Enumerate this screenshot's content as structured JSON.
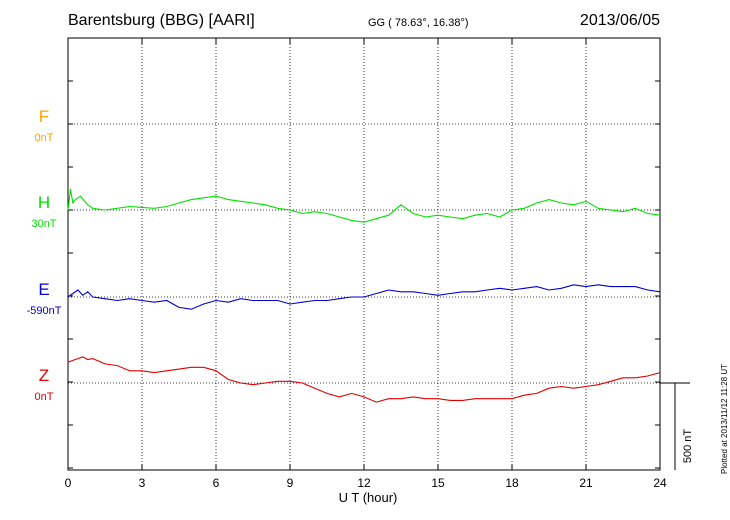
{
  "header": {
    "title": "Barentsburg (BBG)  [AARI]",
    "coords": "GG ( 78.63°,  16.38°)",
    "date": "2013/06/05"
  },
  "footer": {
    "xlabel": "U T (hour)",
    "plotted": "Plotted at 2013/11/12 11:28 UT",
    "scale_label": "500 nT"
  },
  "colors": {
    "F": "#ffa500",
    "H": "#00e000",
    "E": "#0000d0",
    "Z": "#e00000"
  },
  "chart_data": {
    "type": "line",
    "title": "Barentsburg (BBG)  [AARI]",
    "xlabel": "U T (hour)",
    "ylabel": "",
    "xlim": [
      0,
      24
    ],
    "xticks": [
      0,
      3,
      6,
      9,
      12,
      15,
      18,
      21,
      24
    ],
    "grid": true,
    "scale_bar_nT": 500,
    "series": [
      {
        "name": "F",
        "baseline_label": "0nT",
        "color": "#ffa500",
        "x": [],
        "values": []
      },
      {
        "name": "H",
        "baseline_label": "30nT",
        "color": "#00e000",
        "x": [
          0,
          0.1,
          0.2,
          0.3,
          0.5,
          0.8,
          1,
          1.5,
          2,
          2.5,
          3,
          3.5,
          4,
          4.5,
          5,
          5.5,
          6,
          6.5,
          7,
          7.5,
          8,
          8.5,
          9,
          9.5,
          10,
          10.5,
          11,
          11.5,
          12,
          12.5,
          13,
          13.5,
          14,
          14.5,
          15,
          15.5,
          16,
          16.5,
          17,
          17.5,
          18,
          18.5,
          19,
          19.5,
          20,
          20.5,
          21,
          21.5,
          22,
          22.5,
          23,
          23.5,
          24
        ],
        "values": [
          0,
          120,
          40,
          60,
          80,
          30,
          10,
          0,
          10,
          20,
          15,
          10,
          20,
          40,
          60,
          70,
          80,
          60,
          50,
          40,
          30,
          10,
          0,
          -20,
          -10,
          -20,
          -40,
          -60,
          -70,
          -50,
          -30,
          30,
          -20,
          -40,
          -30,
          -40,
          -50,
          -30,
          -20,
          -40,
          0,
          10,
          40,
          60,
          40,
          30,
          50,
          10,
          0,
          -10,
          10,
          -20,
          -30
        ]
      },
      {
        "name": "E",
        "baseline_label": "-590nT",
        "color": "#0000d0",
        "x": [
          0,
          0.2,
          0.4,
          0.6,
          0.8,
          1,
          1.5,
          2,
          2.5,
          3,
          3.5,
          4,
          4.5,
          5,
          5.5,
          6,
          6.5,
          7,
          7.5,
          8,
          8.5,
          9,
          9.5,
          10,
          10.5,
          11,
          11.5,
          12,
          12.5,
          13,
          13.5,
          14,
          14.5,
          15,
          15.5,
          16,
          16.5,
          17,
          17.5,
          18,
          18.5,
          19,
          19.5,
          20,
          20.5,
          21,
          21.5,
          22,
          22.5,
          23,
          23.5,
          24
        ],
        "values": [
          0,
          20,
          40,
          10,
          30,
          0,
          -10,
          -20,
          -10,
          -20,
          -30,
          -20,
          -60,
          -70,
          -40,
          -20,
          -30,
          -10,
          -20,
          -20,
          -20,
          -40,
          -30,
          -20,
          -20,
          -10,
          0,
          0,
          20,
          40,
          30,
          30,
          20,
          10,
          20,
          30,
          30,
          40,
          50,
          40,
          50,
          60,
          40,
          50,
          70,
          60,
          70,
          60,
          60,
          60,
          40,
          30
        ]
      },
      {
        "name": "Z",
        "baseline_label": "0nT",
        "color": "#e00000",
        "x": [
          0,
          0.2,
          0.4,
          0.6,
          0.8,
          1,
          1.5,
          2,
          2.5,
          3,
          3.5,
          4,
          4.5,
          5,
          5.5,
          6,
          6.5,
          7,
          7.5,
          8,
          8.5,
          9,
          9.5,
          10,
          10.5,
          11,
          11.5,
          12,
          12.5,
          13,
          13.5,
          14,
          14.5,
          15,
          15.5,
          16,
          16.5,
          17,
          17.5,
          18,
          18.5,
          19,
          19.5,
          20,
          20.5,
          21,
          21.5,
          22,
          22.5,
          23,
          23.5,
          24
        ],
        "values": [
          120,
          130,
          140,
          150,
          135,
          140,
          110,
          100,
          70,
          70,
          60,
          70,
          80,
          90,
          90,
          70,
          20,
          0,
          -10,
          0,
          10,
          10,
          0,
          -30,
          -60,
          -80,
          -60,
          -80,
          -110,
          -90,
          -90,
          -80,
          -90,
          -90,
          -100,
          -100,
          -90,
          -90,
          -90,
          -90,
          -70,
          -60,
          -30,
          -20,
          -30,
          -20,
          -10,
          10,
          30,
          30,
          40,
          60
        ]
      }
    ]
  }
}
